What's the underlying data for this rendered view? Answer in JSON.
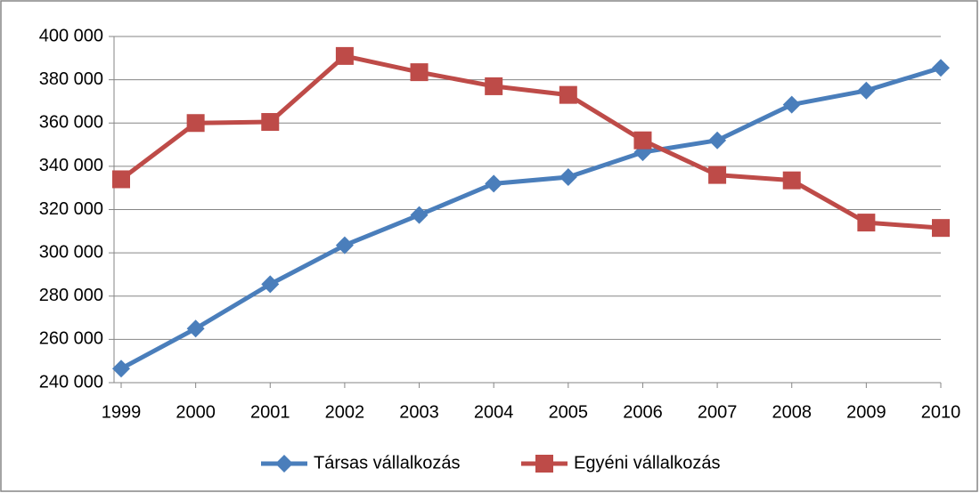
{
  "chart_data": {
    "type": "line",
    "categories": [
      "1999",
      "2000",
      "2001",
      "2002",
      "2003",
      "2004",
      "2005",
      "2006",
      "2007",
      "2008",
      "2009",
      "2010"
    ],
    "series": [
      {
        "name": "Társas vállalkozás",
        "color": "#4a7ebb",
        "marker": "diamond",
        "values": [
          246500,
          265000,
          285500,
          303500,
          317500,
          332000,
          335000,
          346500,
          352000,
          368500,
          375000,
          385500
        ]
      },
      {
        "name": "Egyéni vállalkozás",
        "color": "#be4b48",
        "marker": "square",
        "values": [
          334000,
          360000,
          360500,
          391000,
          383500,
          377000,
          373000,
          352000,
          336000,
          333500,
          314000,
          311500
        ]
      }
    ],
    "ylim": [
      240000,
      400000
    ],
    "yticks": [
      {
        "value": 240000,
        "label": "240 000"
      },
      {
        "value": 260000,
        "label": "260 000"
      },
      {
        "value": 280000,
        "label": "280 000"
      },
      {
        "value": 300000,
        "label": "300 000"
      },
      {
        "value": 320000,
        "label": "320 000"
      },
      {
        "value": 340000,
        "label": "340 000"
      },
      {
        "value": 360000,
        "label": "360 000"
      },
      {
        "value": 380000,
        "label": "380 000"
      },
      {
        "value": 400000,
        "label": "400 000"
      }
    ],
    "grid": true,
    "legend": "bottom"
  }
}
